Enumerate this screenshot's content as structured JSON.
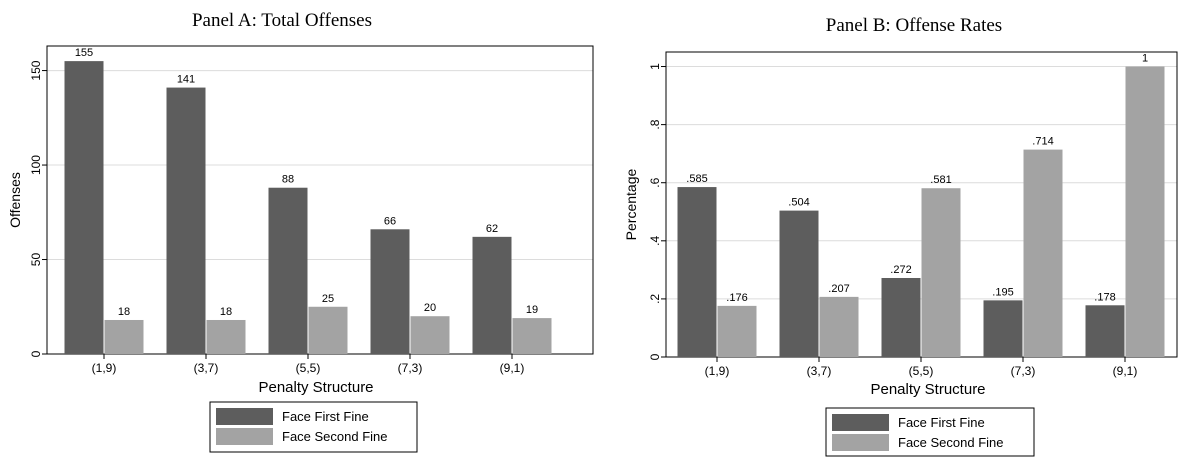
{
  "colors": {
    "series1": "#5d5d5d",
    "series2": "#a3a3a3",
    "grid": "#dcdcdc",
    "axis": "#000000"
  },
  "chart_data": [
    {
      "type": "bar",
      "title": "Panel A: Total Offenses",
      "xlabel": "Penalty Structure",
      "ylabel": "Offenses",
      "categories": [
        "(1,9)",
        "(3,7)",
        "(5,5)",
        "(7,3)",
        "(9,1)"
      ],
      "series": [
        {
          "name": "Face First Fine",
          "values": [
            155,
            141,
            88,
            66,
            62
          ],
          "labels": [
            "155",
            "141",
            "88",
            "66",
            "62"
          ]
        },
        {
          "name": "Face Second Fine",
          "values": [
            18,
            18,
            25,
            20,
            19
          ],
          "labels": [
            "18",
            "18",
            "25",
            "20",
            "19"
          ]
        }
      ],
      "ylim": [
        0,
        163
      ],
      "yticks": [
        0,
        50,
        100,
        150
      ],
      "ytick_labels": [
        "0",
        "50",
        "100",
        "150"
      ],
      "grid": true,
      "legend_position": "bottom"
    },
    {
      "type": "bar",
      "title": "Panel B: Offense Rates",
      "xlabel": "Penalty Structure",
      "ylabel": "Percentage",
      "categories": [
        "(1,9)",
        "(3,7)",
        "(5,5)",
        "(7,3)",
        "(9,1)"
      ],
      "series": [
        {
          "name": "Face First Fine",
          "values": [
            0.585,
            0.504,
            0.272,
            0.195,
            0.178
          ],
          "labels": [
            ".585",
            ".504",
            ".272",
            ".195",
            ".178"
          ]
        },
        {
          "name": "Face Second Fine",
          "values": [
            0.176,
            0.207,
            0.581,
            0.714,
            1.0
          ],
          "labels": [
            ".176",
            ".207",
            ".581",
            ".714",
            "1"
          ]
        }
      ],
      "ylim": [
        0,
        1.05
      ],
      "yticks": [
        0,
        0.2,
        0.4,
        0.6,
        0.8,
        1
      ],
      "ytick_labels": [
        "0",
        ".2",
        ".4",
        ".6",
        ".8",
        "1"
      ],
      "grid": true,
      "legend_position": "bottom"
    }
  ]
}
